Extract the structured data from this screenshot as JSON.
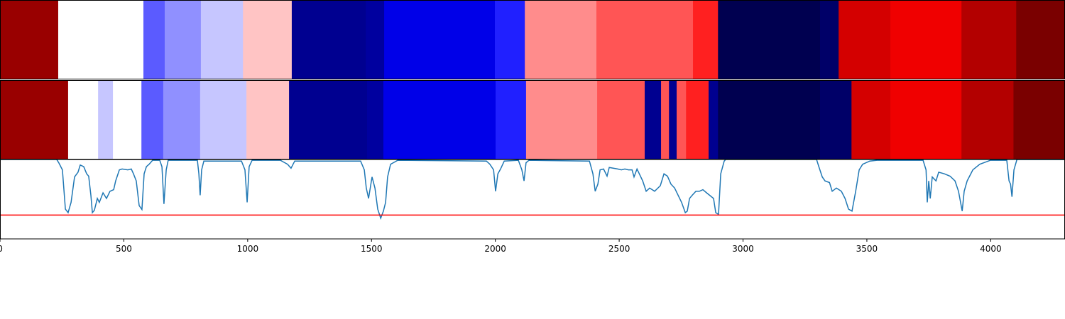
{
  "chart_data": {
    "type": "segment_strips",
    "xlim": [
      0,
      4300
    ],
    "xticks": [
      0,
      500,
      1000,
      1500,
      2000,
      2500,
      3000,
      3500,
      4000
    ],
    "ylim": [
      0,
      1
    ],
    "rows": [
      {
        "boundaries": [
          0,
          235,
          579,
          665,
          811,
          981,
          1178,
          1477,
          1551,
          1998,
          2119,
          2408,
          2798,
          2899,
          3311,
          3386,
          3595,
          3882,
          4103,
          4300
        ],
        "colors": [
          "#990000",
          "#ffffff",
          "#5b5bff",
          "#9090ff",
          "#c6c6ff",
          "#ffc4c4",
          "#000090",
          "#00009f",
          "#0000e8",
          "#2020ff",
          "#ff8c8c",
          "#ff5555",
          "#ff2020",
          "#000050",
          "#000068",
          "#d40000",
          "#f00000",
          "#b30000",
          "#7a0000"
        ]
      },
      {
        "boundaries": [
          0,
          275,
          396,
          456,
          571,
          659,
          808,
          995,
          1167,
          1482,
          1548,
          2001,
          2124,
          2411,
          2603,
          2669,
          2701,
          2732,
          2770,
          2861,
          2899,
          3311,
          3438,
          3595,
          3882,
          4092,
          4300
        ],
        "colors": [
          "#990000",
          "#ffffff",
          "#c6c6ff",
          "#ffffff",
          "#5b5bff",
          "#9090ff",
          "#c6c6ff",
          "#ffc4c4",
          "#000090",
          "#00009f",
          "#0000e8",
          "#2020ff",
          "#ff8c8c",
          "#ff5555",
          "#000090",
          "#ff5555",
          "#000090",
          "#ff5555",
          "#ff2020",
          "#000090",
          "#000050",
          "#000068",
          "#d40000",
          "#f00000",
          "#b30000",
          "#7a0000"
        ]
      }
    ],
    "line": {
      "color": "#1f77b4",
      "x": [
        0,
        229,
        238,
        252,
        264,
        275,
        287,
        301,
        315,
        324,
        338,
        350,
        358,
        367,
        373,
        381,
        393,
        401,
        416,
        430,
        444,
        459,
        467,
        482,
        493,
        516,
        530,
        539,
        550,
        562,
        573,
        582,
        591,
        602,
        616,
        645,
        654,
        662,
        671,
        679,
        797,
        803,
        808,
        814,
        823,
        975,
        989,
        998,
        1006,
        1018,
        1132,
        1161,
        1175,
        1190,
        1456,
        1471,
        1479,
        1488,
        1502,
        1514,
        1525,
        1537,
        1548,
        1557,
        1565,
        1577,
        1606,
        1964,
        1978,
        1993,
        2001,
        2010,
        2021,
        2036,
        2093,
        2107,
        2116,
        2124,
        2136,
        2380,
        2394,
        2403,
        2414,
        2423,
        2437,
        2451,
        2460,
        2494,
        2509,
        2523,
        2537,
        2552,
        2560,
        2572,
        2595,
        2609,
        2623,
        2643,
        2666,
        2681,
        2695,
        2709,
        2724,
        2738,
        2752,
        2767,
        2775,
        2784,
        2795,
        2810,
        2824,
        2838,
        2853,
        2881,
        2890,
        2901,
        2910,
        2924,
        2930,
        3297,
        3306,
        3320,
        3331,
        3349,
        3360,
        3377,
        3397,
        3412,
        3426,
        3440,
        3455,
        3469,
        3483,
        3512,
        3541,
        3727,
        3739,
        3744,
        3750,
        3756,
        3764,
        3779,
        3790,
        3813,
        3836,
        3856,
        3870,
        3885,
        3893,
        3905,
        3928,
        3956,
        3999,
        4065,
        4074,
        4080,
        4086,
        4094,
        4106,
        4300
      ],
      "y": [
        1.0,
        1.0,
        0.955,
        0.87,
        0.375,
        0.33,
        0.46,
        0.78,
        0.84,
        0.93,
        0.91,
        0.82,
        0.79,
        0.55,
        0.33,
        0.36,
        0.51,
        0.46,
        0.58,
        0.51,
        0.6,
        0.62,
        0.73,
        0.87,
        0.88,
        0.87,
        0.88,
        0.82,
        0.73,
        0.42,
        0.37,
        0.82,
        0.91,
        0.94,
        0.99,
        0.99,
        0.91,
        0.44,
        0.87,
        0.99,
        0.99,
        0.82,
        0.55,
        0.87,
        0.98,
        0.98,
        0.87,
        0.46,
        0.91,
        0.99,
        0.99,
        0.94,
        0.89,
        0.98,
        0.98,
        0.87,
        0.64,
        0.51,
        0.78,
        0.64,
        0.375,
        0.26,
        0.35,
        0.46,
        0.78,
        0.94,
        0.99,
        0.98,
        0.94,
        0.87,
        0.6,
        0.82,
        0.88,
        0.98,
        0.99,
        0.87,
        0.73,
        0.96,
        0.99,
        0.98,
        0.82,
        0.6,
        0.69,
        0.87,
        0.88,
        0.79,
        0.9,
        0.88,
        0.87,
        0.88,
        0.87,
        0.87,
        0.78,
        0.88,
        0.73,
        0.6,
        0.64,
        0.6,
        0.67,
        0.82,
        0.79,
        0.69,
        0.64,
        0.55,
        0.46,
        0.33,
        0.35,
        0.51,
        0.55,
        0.6,
        0.6,
        0.62,
        0.58,
        0.51,
        0.33,
        0.31,
        0.82,
        0.98,
        1.0,
        1.0,
        0.91,
        0.78,
        0.73,
        0.71,
        0.6,
        0.64,
        0.6,
        0.51,
        0.375,
        0.35,
        0.6,
        0.87,
        0.94,
        0.98,
        0.99,
        0.99,
        0.87,
        0.46,
        0.73,
        0.51,
        0.78,
        0.73,
        0.84,
        0.82,
        0.79,
        0.73,
        0.6,
        0.35,
        0.6,
        0.73,
        0.87,
        0.94,
        0.99,
        0.99,
        0.73,
        0.69,
        0.53,
        0.87,
        1.0,
        1.0
      ]
    },
    "threshold": {
      "value": 0.3,
      "color": "#ff0000"
    }
  }
}
